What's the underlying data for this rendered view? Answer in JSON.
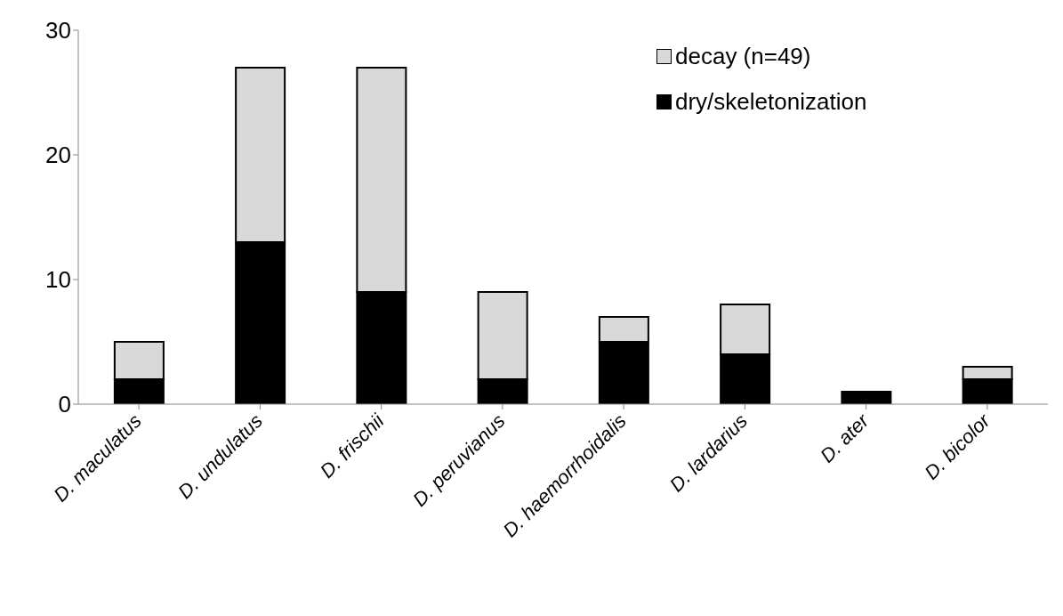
{
  "chart_data": {
    "type": "bar",
    "stacked": true,
    "categories": [
      "D. maculatus",
      "D. undulatus",
      "D. frischii",
      "D. peruvianus",
      "D. haemorrhoidalis",
      "D. lardarius",
      "D. ater",
      "D. bicolor"
    ],
    "series": [
      {
        "name": "dry/skeletonization",
        "color": "#000000",
        "values": [
          2,
          13,
          9,
          2,
          5,
          4,
          1,
          2
        ]
      },
      {
        "name": "decay (n=49)",
        "color": "#d9d9d9",
        "values": [
          3,
          14,
          18,
          7,
          2,
          4,
          0,
          1
        ]
      }
    ],
    "ylim": [
      0,
      30
    ],
    "yticks": [
      0,
      10,
      20,
      30
    ],
    "grid": false,
    "legend": "top right"
  }
}
